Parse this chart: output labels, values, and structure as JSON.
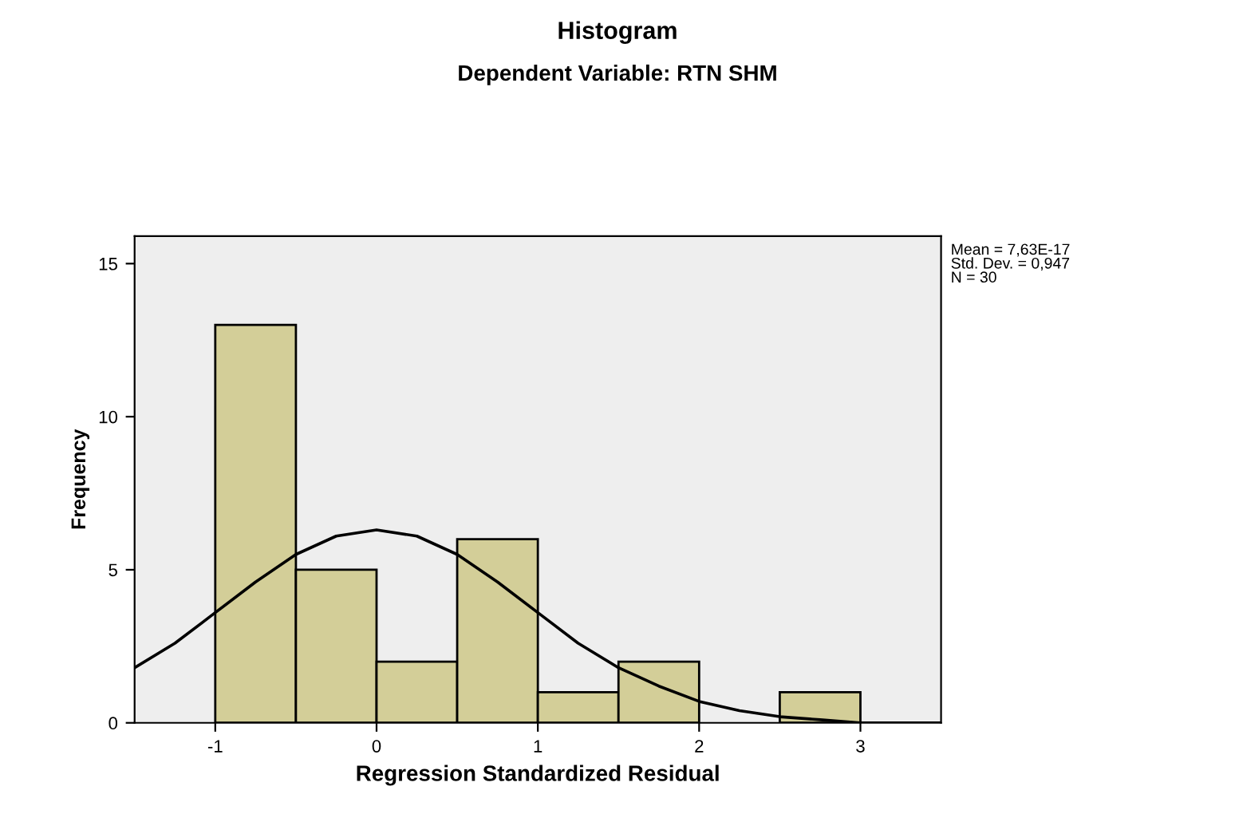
{
  "chart_data": [
    {
      "type": "histogram",
      "title": "Histogram",
      "subtitle": "Dependent Variable: RTN SHM",
      "xlabel": "Regression Standardized Residual",
      "ylabel": "Frequency",
      "bins": [
        -1,
        -0.5,
        0,
        0.5,
        1,
        1.5,
        2,
        2.5,
        3
      ],
      "values": [
        13,
        5,
        2,
        6,
        1,
        2,
        0,
        1
      ],
      "color": "#d3ce98",
      "xlim": [
        -1.5,
        3.5
      ],
      "ylim": [
        0,
        15.9
      ],
      "xticks": [
        -1,
        0,
        1,
        2,
        3
      ],
      "yticks": [
        0,
        5,
        10,
        15
      ],
      "grid": false,
      "legend": false,
      "annotations": [
        "Mean = 7,63E-17",
        "Std. Dev. = 0,947",
        "N = 30"
      ],
      "series": [
        {
          "type": "line",
          "color": "#000000",
          "x": [
            -1.5,
            -1.25,
            -1,
            -0.75,
            -0.5,
            -0.25,
            0,
            0.25,
            0.5,
            0.75,
            1,
            1.25,
            1.5,
            1.75,
            2,
            2.25,
            2.5,
            2.75,
            3,
            3.25,
            3.5
          ],
          "values": [
            1.8,
            2.6,
            3.6,
            4.6,
            5.5,
            6.1,
            6.3,
            6.1,
            5.5,
            4.6,
            3.6,
            2.6,
            1.8,
            1.2,
            0.7,
            0.4,
            0.2,
            0.1,
            0.0,
            0.0,
            0.0
          ]
        }
      ]
    }
  ]
}
